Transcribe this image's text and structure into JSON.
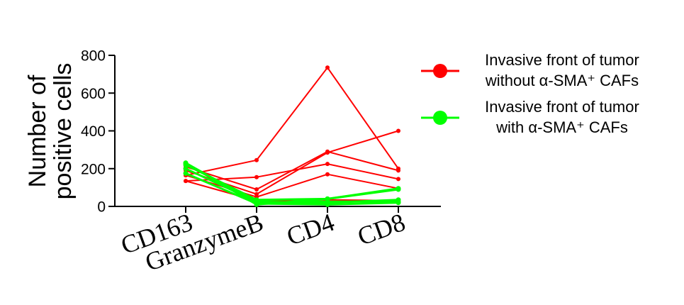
{
  "chart_data": {
    "type": "line",
    "categories": [
      "CD163",
      "GranzymeB",
      "CD4",
      "CD8"
    ],
    "ylabel_lines": [
      "Number of",
      "positive cells"
    ],
    "xlabel": "",
    "ylim": [
      0,
      800
    ],
    "yticks": [
      0,
      200,
      400,
      600,
      800
    ],
    "grid": false,
    "legend_position": "right",
    "groups": [
      {
        "legend_lines": [
          "Invasive front of tumor",
          "without α-SMA⁺ CAFs"
        ],
        "color": "#ff0000",
        "series": [
          {
            "values": [
              165,
              245,
              735,
              200
            ]
          },
          {
            "values": [
              210,
              90,
              290,
              190
            ]
          },
          {
            "values": [
              190,
              65,
              285,
              400
            ]
          },
          {
            "values": [
              135,
              155,
              225,
              145
            ]
          },
          {
            "values": [
              165,
              50,
              170,
              95
            ]
          },
          {
            "values": [
              135,
              30,
              35,
              30
            ]
          }
        ]
      },
      {
        "legend_lines": [
          "Invasive front of tumor",
          "with α-SMA⁺ CAFs"
        ],
        "color": "#00ff00",
        "series": [
          {
            "values": [
              230,
              10,
              40,
              95
            ]
          },
          {
            "values": [
              220,
              35,
              40,
              90
            ]
          },
          {
            "values": [
              200,
              25,
              20,
              35
            ]
          },
          {
            "values": [
              175,
              15,
              10,
              20
            ]
          },
          {
            "values": [
              230,
              20,
              25,
              25
            ]
          }
        ]
      }
    ]
  }
}
